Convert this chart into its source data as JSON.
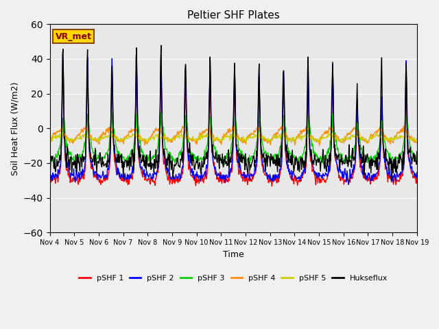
{
  "title": "Peltier SHF Plates",
  "xlabel": "Time",
  "ylabel": "Soil Heat Flux (W/m2)",
  "ylim": [
    -60,
    60
  ],
  "yticks": [
    -60,
    -40,
    -20,
    0,
    20,
    40,
    60
  ],
  "plot_bg": "#e8e8e8",
  "fig_bg": "#f0f0f0",
  "annotation_text": "VR_met",
  "annotation_color": "#8B0000",
  "annotation_bg": "#FFD700",
  "annotation_edge": "#8B4513",
  "series_colors": {
    "pSHF 1": "#FF0000",
    "pSHF 2": "#0000FF",
    "pSHF 3": "#00CC00",
    "pSHF 4": "#FF8C00",
    "pSHF 5": "#CCCC00",
    "Hukseflux": "#000000"
  },
  "tick_labels": [
    "Nov 4",
    "Nov 5",
    "Nov 6",
    "Nov 7",
    "Nov 8",
    "Nov 9",
    "Nov 10",
    "Nov 11",
    "Nov 12",
    "Nov 13",
    "Nov 14",
    "Nov 15",
    "Nov 16",
    "Nov 17",
    "Nov 18",
    "Nov 19"
  ],
  "grid_color": "white",
  "linewidth": 1.0
}
